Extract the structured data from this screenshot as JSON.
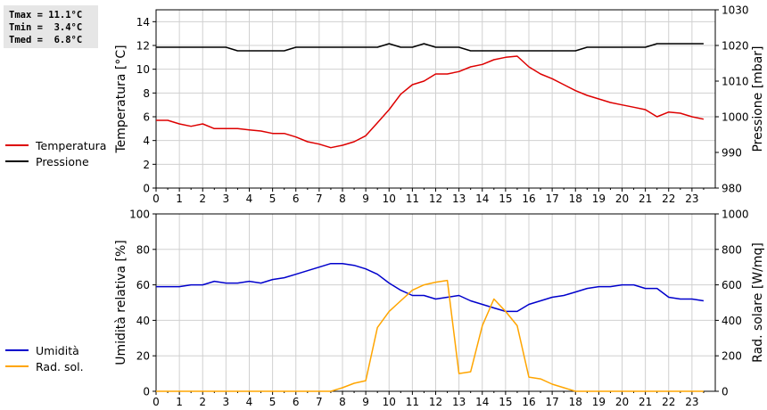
{
  "stats": {
    "tmax": "Tmax = 11.1°C",
    "tmin": "Tmin =  3.4°C",
    "tmed": "Tmed =  6.8°C"
  },
  "colors": {
    "temperature": "#dd0000",
    "pressure": "#000000",
    "humidity": "#0000cc",
    "radiation": "#ffa500",
    "grid": "#d0d0d0"
  },
  "chart_data": [
    {
      "type": "line",
      "title": "",
      "xlabel": "",
      "ylabel": "Temperatura [°C]",
      "y2label": "Pressione [mbar]",
      "xlim": [
        0,
        24
      ],
      "ylim": [
        0,
        15
      ],
      "y2lim": [
        980,
        1030
      ],
      "xticks": [
        0,
        1,
        2,
        3,
        4,
        5,
        6,
        7,
        8,
        9,
        10,
        11,
        12,
        13,
        14,
        15,
        16,
        17,
        18,
        19,
        20,
        21,
        22,
        23
      ],
      "yticks": [
        0,
        2,
        4,
        6,
        8,
        10,
        12,
        14
      ],
      "y2ticks": [
        980,
        990,
        1000,
        1010,
        1020,
        1030
      ],
      "grid": true,
      "legend_position": "left",
      "series": [
        {
          "name": "Temperatura",
          "axis": "left",
          "color": "#dd0000",
          "x": [
            0,
            0.5,
            1,
            1.5,
            2,
            2.5,
            3,
            3.5,
            4,
            4.5,
            5,
            5.5,
            6,
            6.5,
            7,
            7.5,
            8,
            8.5,
            9,
            9.5,
            10,
            10.5,
            11,
            11.5,
            12,
            12.5,
            13,
            13.5,
            14,
            14.5,
            15,
            15.5,
            16,
            16.5,
            17,
            17.5,
            18,
            18.5,
            19,
            19.5,
            20,
            20.5,
            21,
            21.5,
            22,
            22.5,
            23,
            23.5
          ],
          "values": [
            5.7,
            5.7,
            5.4,
            5.2,
            5.4,
            5.0,
            5.0,
            5.0,
            4.9,
            4.8,
            4.6,
            4.6,
            4.3,
            3.9,
            3.7,
            3.4,
            3.6,
            3.9,
            4.4,
            5.5,
            6.6,
            7.9,
            8.7,
            9.0,
            9.6,
            9.6,
            9.8,
            10.2,
            10.4,
            10.8,
            11.0,
            11.1,
            10.2,
            9.6,
            9.2,
            8.7,
            8.2,
            7.8,
            7.5,
            7.2,
            7.0,
            6.8,
            6.6,
            6.0,
            6.4,
            6.3,
            6.0,
            5.8
          ]
        },
        {
          "name": "Pressione",
          "axis": "right",
          "color": "#000000",
          "x": [
            0,
            1,
            2,
            3,
            3.5,
            5.5,
            6,
            9.5,
            10,
            10.5,
            11,
            11.5,
            12,
            13,
            13.5,
            18,
            18.5,
            21,
            21.5,
            23.5
          ],
          "values": [
            1019.5,
            1019.5,
            1019.5,
            1019.5,
            1018.5,
            1018.5,
            1019.5,
            1019.5,
            1020.5,
            1019.5,
            1019.5,
            1020.5,
            1019.5,
            1019.5,
            1018.5,
            1018.5,
            1019.5,
            1019.5,
            1020.5,
            1020.5
          ]
        }
      ]
    },
    {
      "type": "line",
      "title": "",
      "xlabel": "",
      "ylabel": "Umidità relativa [%]",
      "y2label": "Rad. solare [W/mq]",
      "xlim": [
        0,
        24
      ],
      "ylim": [
        0,
        100
      ],
      "y2lim": [
        0,
        1000
      ],
      "xticks": [
        0,
        1,
        2,
        3,
        4,
        5,
        6,
        7,
        8,
        9,
        10,
        11,
        12,
        13,
        14,
        15,
        16,
        17,
        18,
        19,
        20,
        21,
        22,
        23
      ],
      "yticks": [
        0,
        20,
        40,
        60,
        80,
        100
      ],
      "y2ticks": [
        0,
        200,
        400,
        600,
        800,
        1000
      ],
      "grid": true,
      "legend_position": "left",
      "series": [
        {
          "name": "Umidità",
          "axis": "left",
          "color": "#0000cc",
          "x": [
            0,
            0.5,
            1,
            1.5,
            2,
            2.5,
            3,
            3.5,
            4,
            4.5,
            5,
            5.5,
            6,
            6.5,
            7,
            7.5,
            8,
            8.5,
            9,
            9.5,
            10,
            10.5,
            11,
            11.5,
            12,
            12.5,
            13,
            13.5,
            14,
            14.5,
            15,
            15.5,
            16,
            16.5,
            17,
            17.5,
            18,
            18.5,
            19,
            19.5,
            20,
            20.5,
            21,
            21.5,
            22,
            22.5,
            23,
            23.5
          ],
          "values": [
            59,
            59,
            59,
            60,
            60,
            62,
            61,
            61,
            62,
            61,
            63,
            64,
            66,
            68,
            70,
            72,
            72,
            71,
            69,
            66,
            61,
            57,
            54,
            54,
            52,
            53,
            54,
            51,
            49,
            47,
            45,
            45,
            49,
            51,
            53,
            54,
            56,
            58,
            59,
            59,
            60,
            60,
            58,
            58,
            53,
            52,
            52,
            51
          ]
        },
        {
          "name": "Rad. sol.",
          "axis": "right",
          "color": "#ffa500",
          "x": [
            0,
            7.5,
            8,
            8.5,
            9,
            9.5,
            10,
            10.5,
            11,
            11.5,
            12,
            12.5,
            13,
            13.5,
            14,
            14.5,
            15,
            15.5,
            16,
            16.5,
            17,
            17.5,
            18,
            23.5
          ],
          "values": [
            0,
            0,
            20,
            45,
            60,
            360,
            450,
            510,
            570,
            600,
            615,
            625,
            100,
            110,
            370,
            520,
            450,
            370,
            80,
            70,
            40,
            20,
            0,
            0
          ]
        }
      ]
    }
  ]
}
